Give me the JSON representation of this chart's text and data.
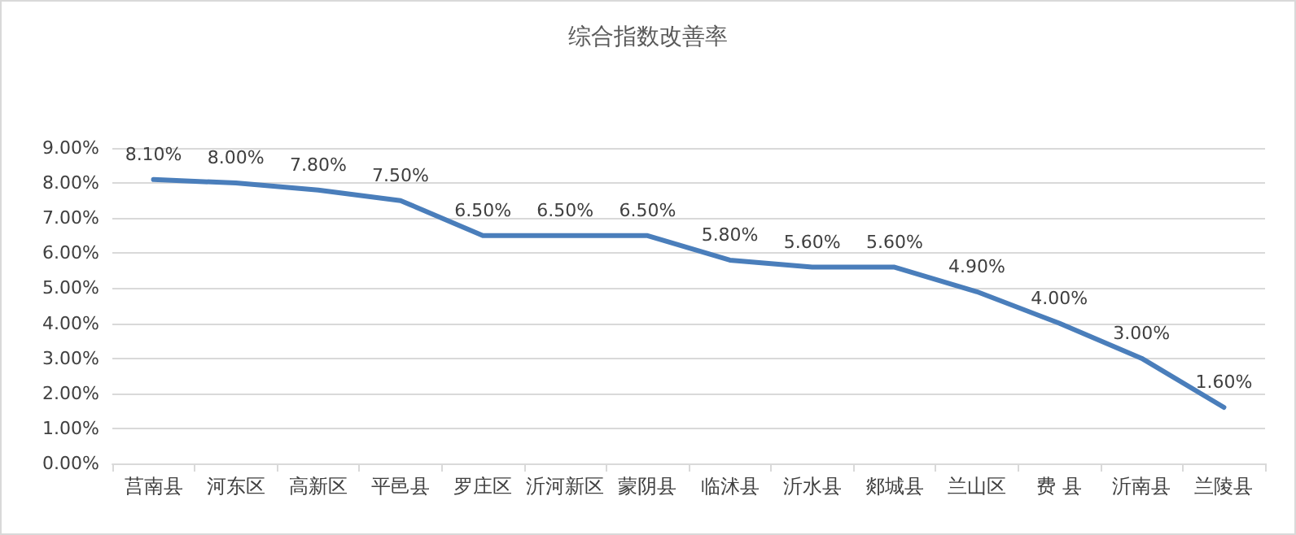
{
  "chart_data": {
    "type": "line",
    "title": "综合指数改善率",
    "categories": [
      "莒南县",
      "河东区",
      "高新区",
      "平邑县",
      "罗庄区",
      "沂河新区",
      "蒙阴县",
      "临沭县",
      "沂水县",
      "郯城县",
      "兰山区",
      "费 县",
      "沂南县",
      "兰陵县"
    ],
    "series": [
      {
        "color": "#4a7ebb",
        "values": [
          8.1,
          8.0,
          7.8,
          7.5,
          6.5,
          6.5,
          6.5,
          5.8,
          5.6,
          5.6,
          4.9,
          4.0,
          3.0,
          1.6
        ],
        "value_labels": [
          "8.10%",
          "8.00%",
          "7.80%",
          "7.50%",
          "6.50%",
          "6.50%",
          "6.50%",
          "5.80%",
          "5.60%",
          "5.60%",
          "4.90%",
          "4.00%",
          "3.00%",
          "1.60%"
        ]
      }
    ],
    "ylim": [
      0,
      9
    ],
    "yticks": [
      {
        "value": 0,
        "label": "0.00%"
      },
      {
        "value": 1,
        "label": "1.00%"
      },
      {
        "value": 2,
        "label": "2.00%"
      },
      {
        "value": 3,
        "label": "3.00%"
      },
      {
        "value": 4,
        "label": "4.00%"
      },
      {
        "value": 5,
        "label": "5.00%"
      },
      {
        "value": 6,
        "label": "6.00%"
      },
      {
        "value": 7,
        "label": "7.00%"
      },
      {
        "value": 8,
        "label": "8.00%"
      },
      {
        "value": 9,
        "label": "9.00%"
      }
    ],
    "grid": "y",
    "marker": "none",
    "line_style": "solid"
  }
}
